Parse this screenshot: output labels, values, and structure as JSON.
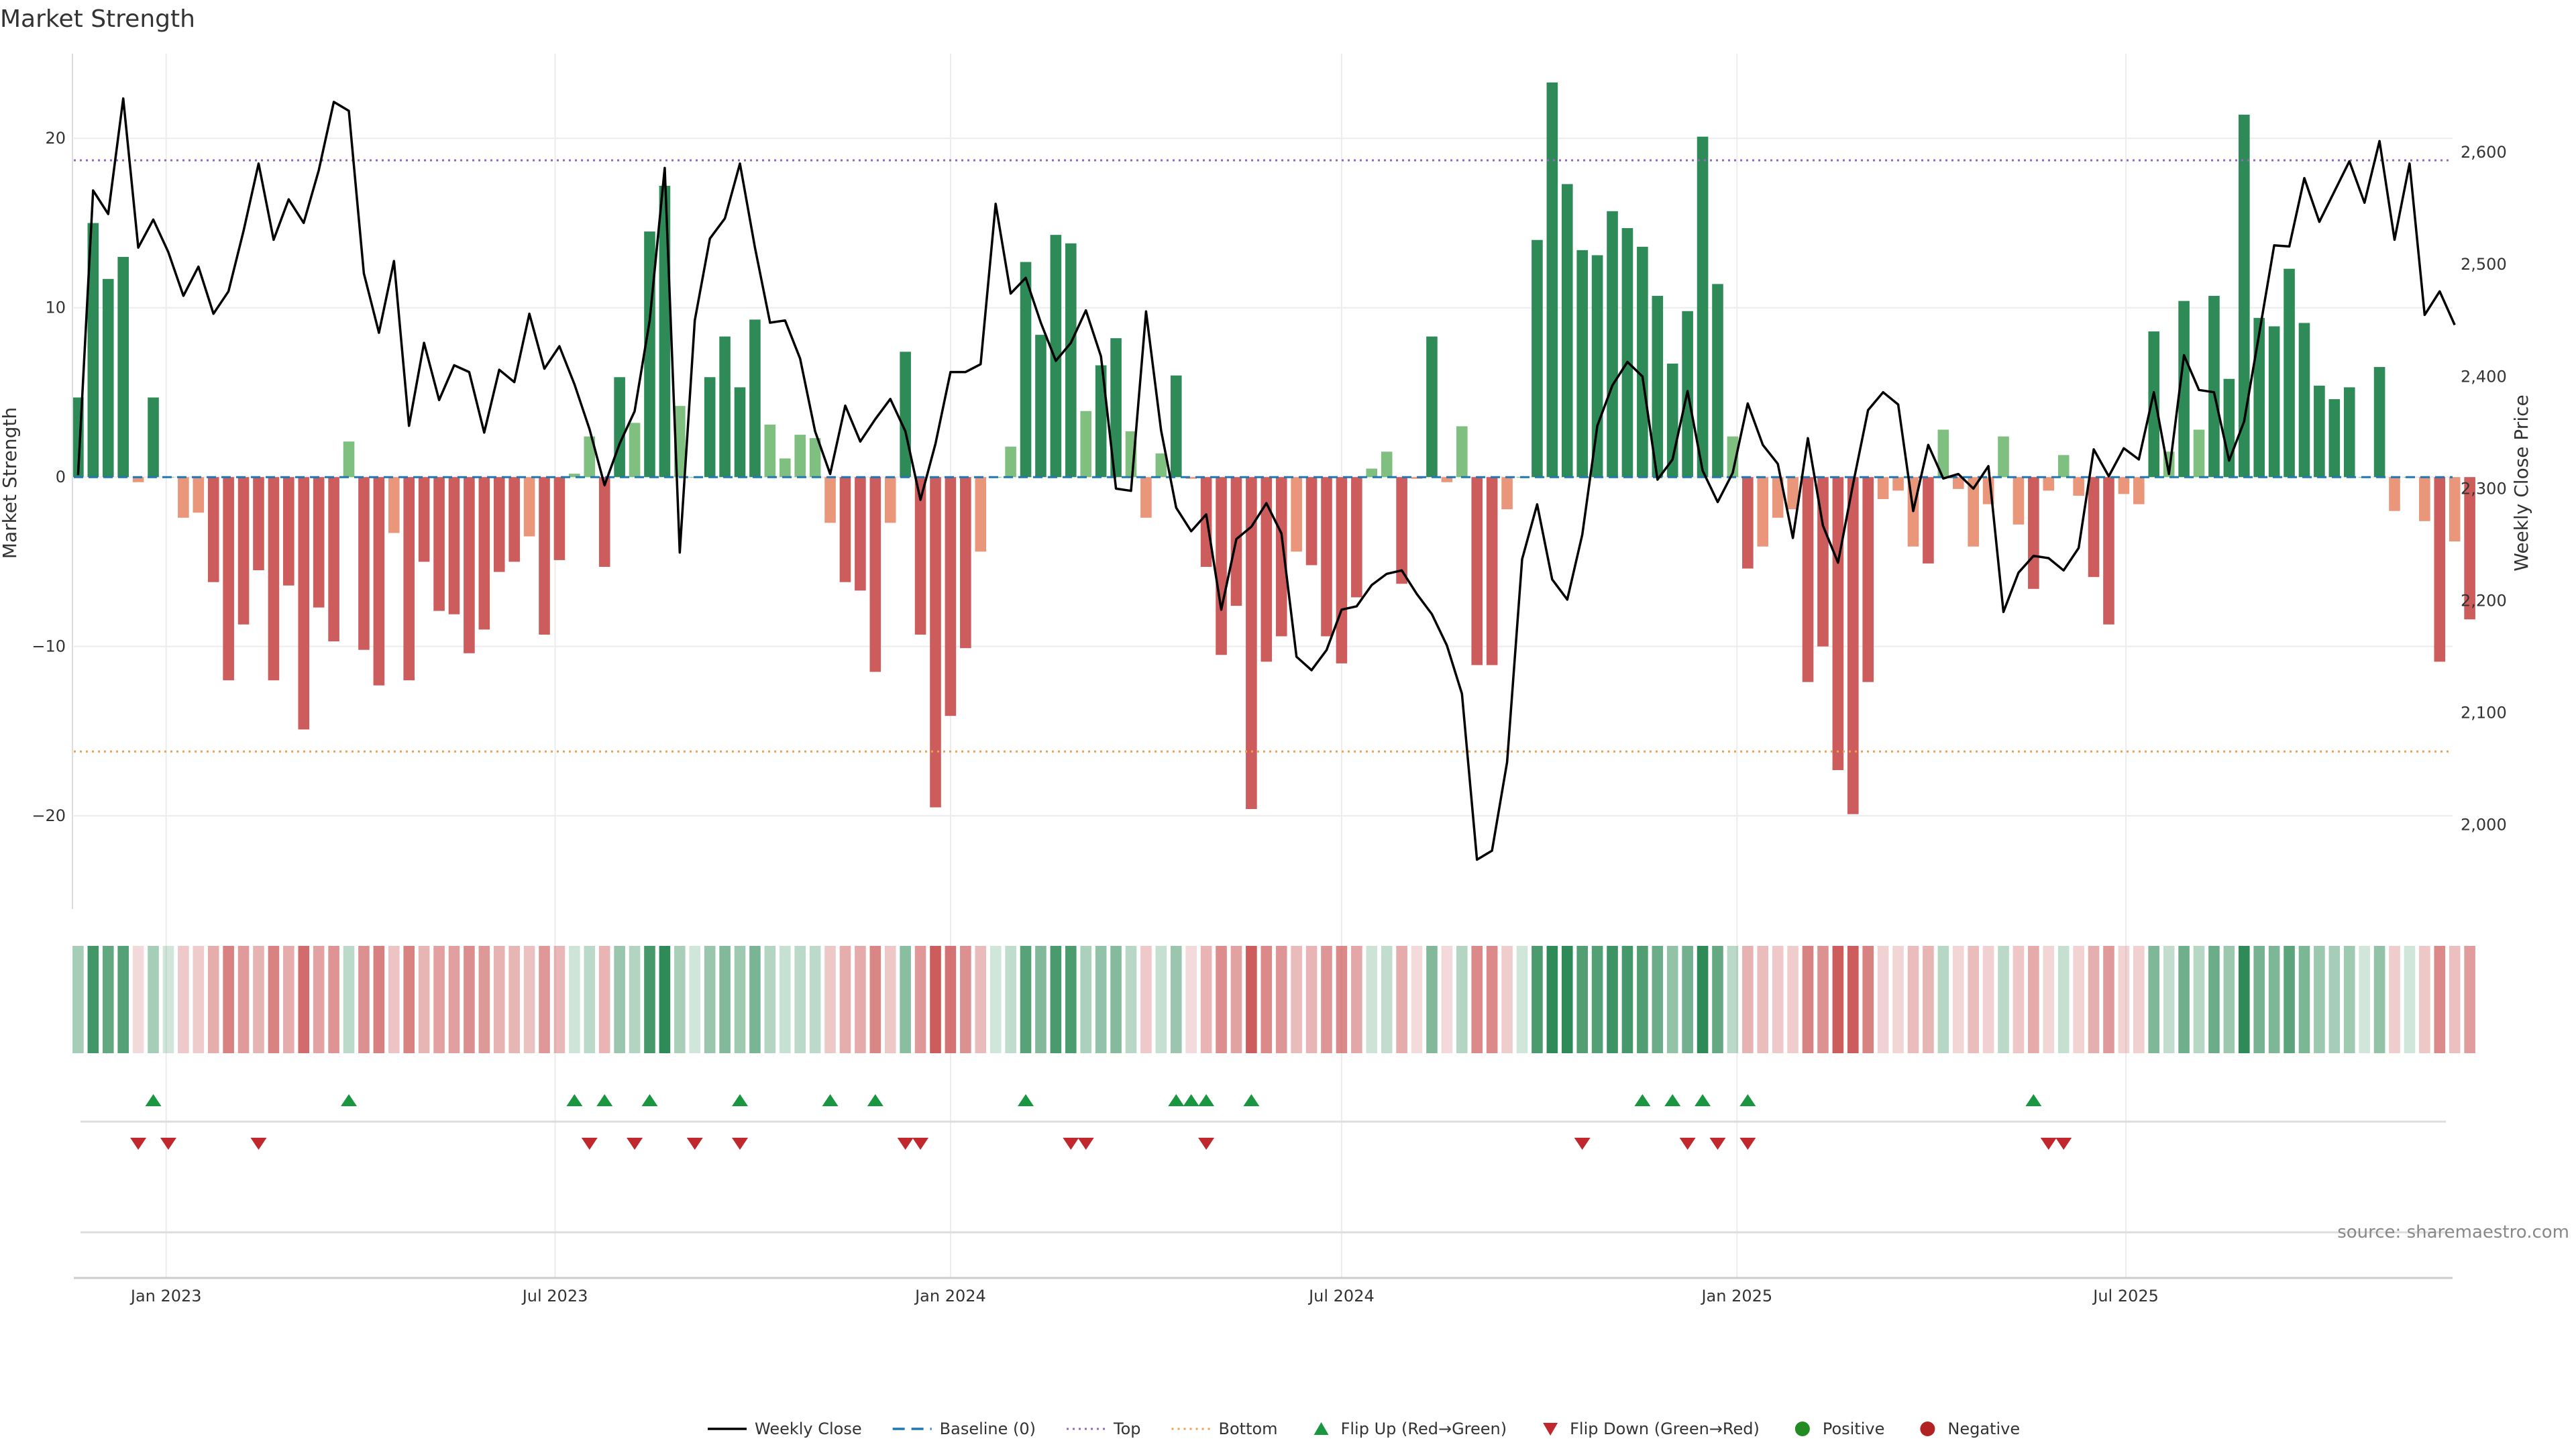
{
  "chart_data": {
    "type": "bar",
    "title": "Market Strength",
    "ylabel_left": "Market Strength",
    "ylabel_right": "Weekly Close Price",
    "source": "source: sharemaestro.com",
    "ylim_left": [
      -25.5,
      25
    ],
    "ylim_right": [
      1925,
      2688
    ],
    "yticks_left": [
      20,
      10,
      0,
      -10,
      -20
    ],
    "yticks_left_labels": [
      "20",
      "10",
      "0",
      "−10",
      "−20"
    ],
    "yticks_right": [
      2600,
      2500,
      2400,
      2300,
      2200,
      2100,
      2000
    ],
    "yticks_right_labels": [
      "2,600",
      "2,500",
      "2,400",
      "2,300",
      "2,200",
      "2,100",
      "2,000"
    ],
    "x_range": [
      "2022-11-19",
      "2025-11-30"
    ],
    "first_week": "2022-11-21",
    "week_days": 7,
    "xticks": [
      {
        "date": "2023-01-01",
        "label": "Jan 2023"
      },
      {
        "date": "2023-07-01",
        "label": "Jul 2023"
      },
      {
        "date": "2024-01-01",
        "label": "Jan 2024"
      },
      {
        "date": "2024-07-01",
        "label": "Jul 2024"
      },
      {
        "date": "2025-01-01",
        "label": "Jan 2025"
      },
      {
        "date": "2025-07-01",
        "label": "Jul 2025"
      }
    ],
    "top_level": 18.7,
    "bottom_level": -16.2,
    "grid": true,
    "legend_position": "bottom-center",
    "colors": {
      "strong_pos": "#2e8b57",
      "weak_pos": "#7fbf7f",
      "strong_neg": "#cd5c5c",
      "weak_neg": "#e9967a",
      "price_line": "#000000",
      "baseline": "#1f77b4",
      "top": "#9467bd",
      "bottom": "#f0a050",
      "flip_up": "#1a9641",
      "flip_down": "#c0282d",
      "positive": "#228b22",
      "negative": "#b22222"
    },
    "series": [
      {
        "name": "Market Strength",
        "values": [
          4.7,
          15,
          11.7,
          13,
          -0.3,
          4.7,
          0,
          -2.4,
          -2.1,
          -6.2,
          -12,
          -8.7,
          -5.5,
          -12,
          -6.4,
          -14.9,
          -7.7,
          -9.7,
          2.1,
          -10.2,
          -12.3,
          -3.3,
          -12,
          -5,
          -7.9,
          -8.1,
          -10.4,
          -9,
          -5.6,
          -5,
          -3.5,
          -9.3,
          -4.9,
          0.2,
          2.4,
          -5.3,
          5.9,
          3.2,
          14.5,
          17.2,
          4.2,
          0,
          5.9,
          8.3,
          5.3,
          9.3,
          3.1,
          1.1,
          2.5,
          2.3,
          -2.7,
          -6.2,
          -6.7,
          -11.5,
          -2.7,
          7.4,
          -9.3,
          -19.5,
          -14.1,
          -10.1,
          -4.4,
          0,
          1.8,
          12.7,
          8.4,
          14.3,
          13.8,
          3.9,
          6.6,
          8.2,
          2.7,
          -2.4,
          1.4,
          6,
          -0.1,
          -5.3,
          -10.5,
          -7.6,
          -19.6,
          -10.9,
          -9.4,
          -4.4,
          -5.2,
          -9.4,
          -11,
          -7.1,
          0.5,
          1.5,
          -6.3,
          -0.1,
          8.3,
          -0.3,
          3,
          -11.1,
          -11.1,
          -1.9,
          0,
          14,
          23.3,
          17.3,
          13.4,
          13.1,
          15.7,
          14.7,
          13.6,
          10.7,
          6.7,
          9.8,
          20.1,
          11.4,
          2.4,
          -5.4,
          -4.1,
          -2.4,
          -1.9,
          -12.1,
          -10,
          -17.3,
          -19.9,
          -12.1,
          -1.3,
          -0.8,
          -4.1,
          -5.1,
          2.8,
          -0.7,
          -4.1,
          -1.6,
          2.4,
          -2.8,
          -6.6,
          -0.8,
          1.3,
          -1.1,
          -5.9,
          -8.7,
          -1,
          -1.6,
          8.6,
          1.5,
          10.4,
          2.8,
          10.7,
          5.8,
          21.4,
          9.4,
          8.9,
          12.3,
          9.1,
          5.4,
          4.6,
          5.3,
          0,
          6.5,
          -2,
          0,
          -2.6,
          -10.9,
          -3.8,
          -8.4
        ]
      },
      {
        "name": "Weekly Close",
        "values": [
          2312,
          2566,
          2545,
          2648,
          2515,
          2540,
          2511,
          2472,
          2498,
          2456,
          2476,
          2530,
          2590,
          2522,
          2558,
          2537,
          2584,
          2645,
          2637,
          2492,
          2439,
          2503,
          2356,
          2430,
          2379,
          2410,
          2404,
          2350,
          2406,
          2395,
          2456,
          2407,
          2427,
          2393,
          2353,
          2303,
          2340,
          2369,
          2450,
          2586,
          2243,
          2450,
          2523,
          2541,
          2590,
          2515,
          2448,
          2450,
          2416,
          2351,
          2313,
          2374,
          2342,
          2362,
          2380,
          2351,
          2290,
          2340,
          2404,
          2404,
          2411,
          2554,
          2474,
          2488,
          2448,
          2414,
          2430,
          2459,
          2418,
          2300,
          2298,
          2458,
          2352,
          2283,
          2262,
          2277,
          2192,
          2255,
          2266,
          2287,
          2260,
          2150,
          2138,
          2156,
          2192,
          2195,
          2214,
          2224,
          2227,
          2206,
          2188,
          2160,
          2117,
          1969,
          1977,
          2056,
          2237,
          2286,
          2219,
          2201,
          2259,
          2356,
          2392,
          2413,
          2400,
          2308,
          2326,
          2387,
          2316,
          2288,
          2314,
          2376,
          2339,
          2322,
          2256,
          2345,
          2267,
          2234,
          2304,
          2370,
          2386,
          2375,
          2280,
          2339,
          2309,
          2313,
          2300,
          2320,
          2190,
          2225,
          2240,
          2238,
          2227,
          2247,
          2335,
          2311,
          2336,
          2326,
          2386,
          2313,
          2419,
          2388,
          2386,
          2325,
          2360,
          2438,
          2517,
          2516,
          2577,
          2538,
          2565,
          2592,
          2555,
          2610,
          2522,
          2590,
          2455,
          2476,
          2446
        ]
      }
    ],
    "heat_strip": {
      "label": "",
      "values_from": "Market Strength"
    },
    "signals": {
      "flip_up_weeks": [
        5,
        18,
        33,
        35,
        38,
        44,
        50,
        53,
        63,
        73,
        74,
        75,
        78,
        104,
        106,
        108,
        111,
        130
      ],
      "flip_down_weeks": [
        4,
        6,
        12,
        34,
        37,
        41,
        44,
        55,
        56,
        66,
        67,
        75,
        100,
        107,
        109,
        111,
        131,
        132
      ]
    },
    "legend": [
      {
        "label": "Weekly Close",
        "kind": "line",
        "color": "#000000"
      },
      {
        "label": "Baseline (0)",
        "kind": "dash",
        "color": "#1f77b4"
      },
      {
        "label": "Top",
        "kind": "dot",
        "color": "#9467bd"
      },
      {
        "label": "Bottom",
        "kind": "dot",
        "color": "#f0a050"
      },
      {
        "label": "Flip Up (Red→Green)",
        "kind": "tri-up",
        "color": "#1a9641"
      },
      {
        "label": "Flip Down (Green→Red)",
        "kind": "tri-down",
        "color": "#c0282d"
      },
      {
        "label": "Positive",
        "kind": "circle",
        "color": "#228b22"
      },
      {
        "label": "Negative",
        "kind": "circle",
        "color": "#b22222"
      }
    ]
  }
}
